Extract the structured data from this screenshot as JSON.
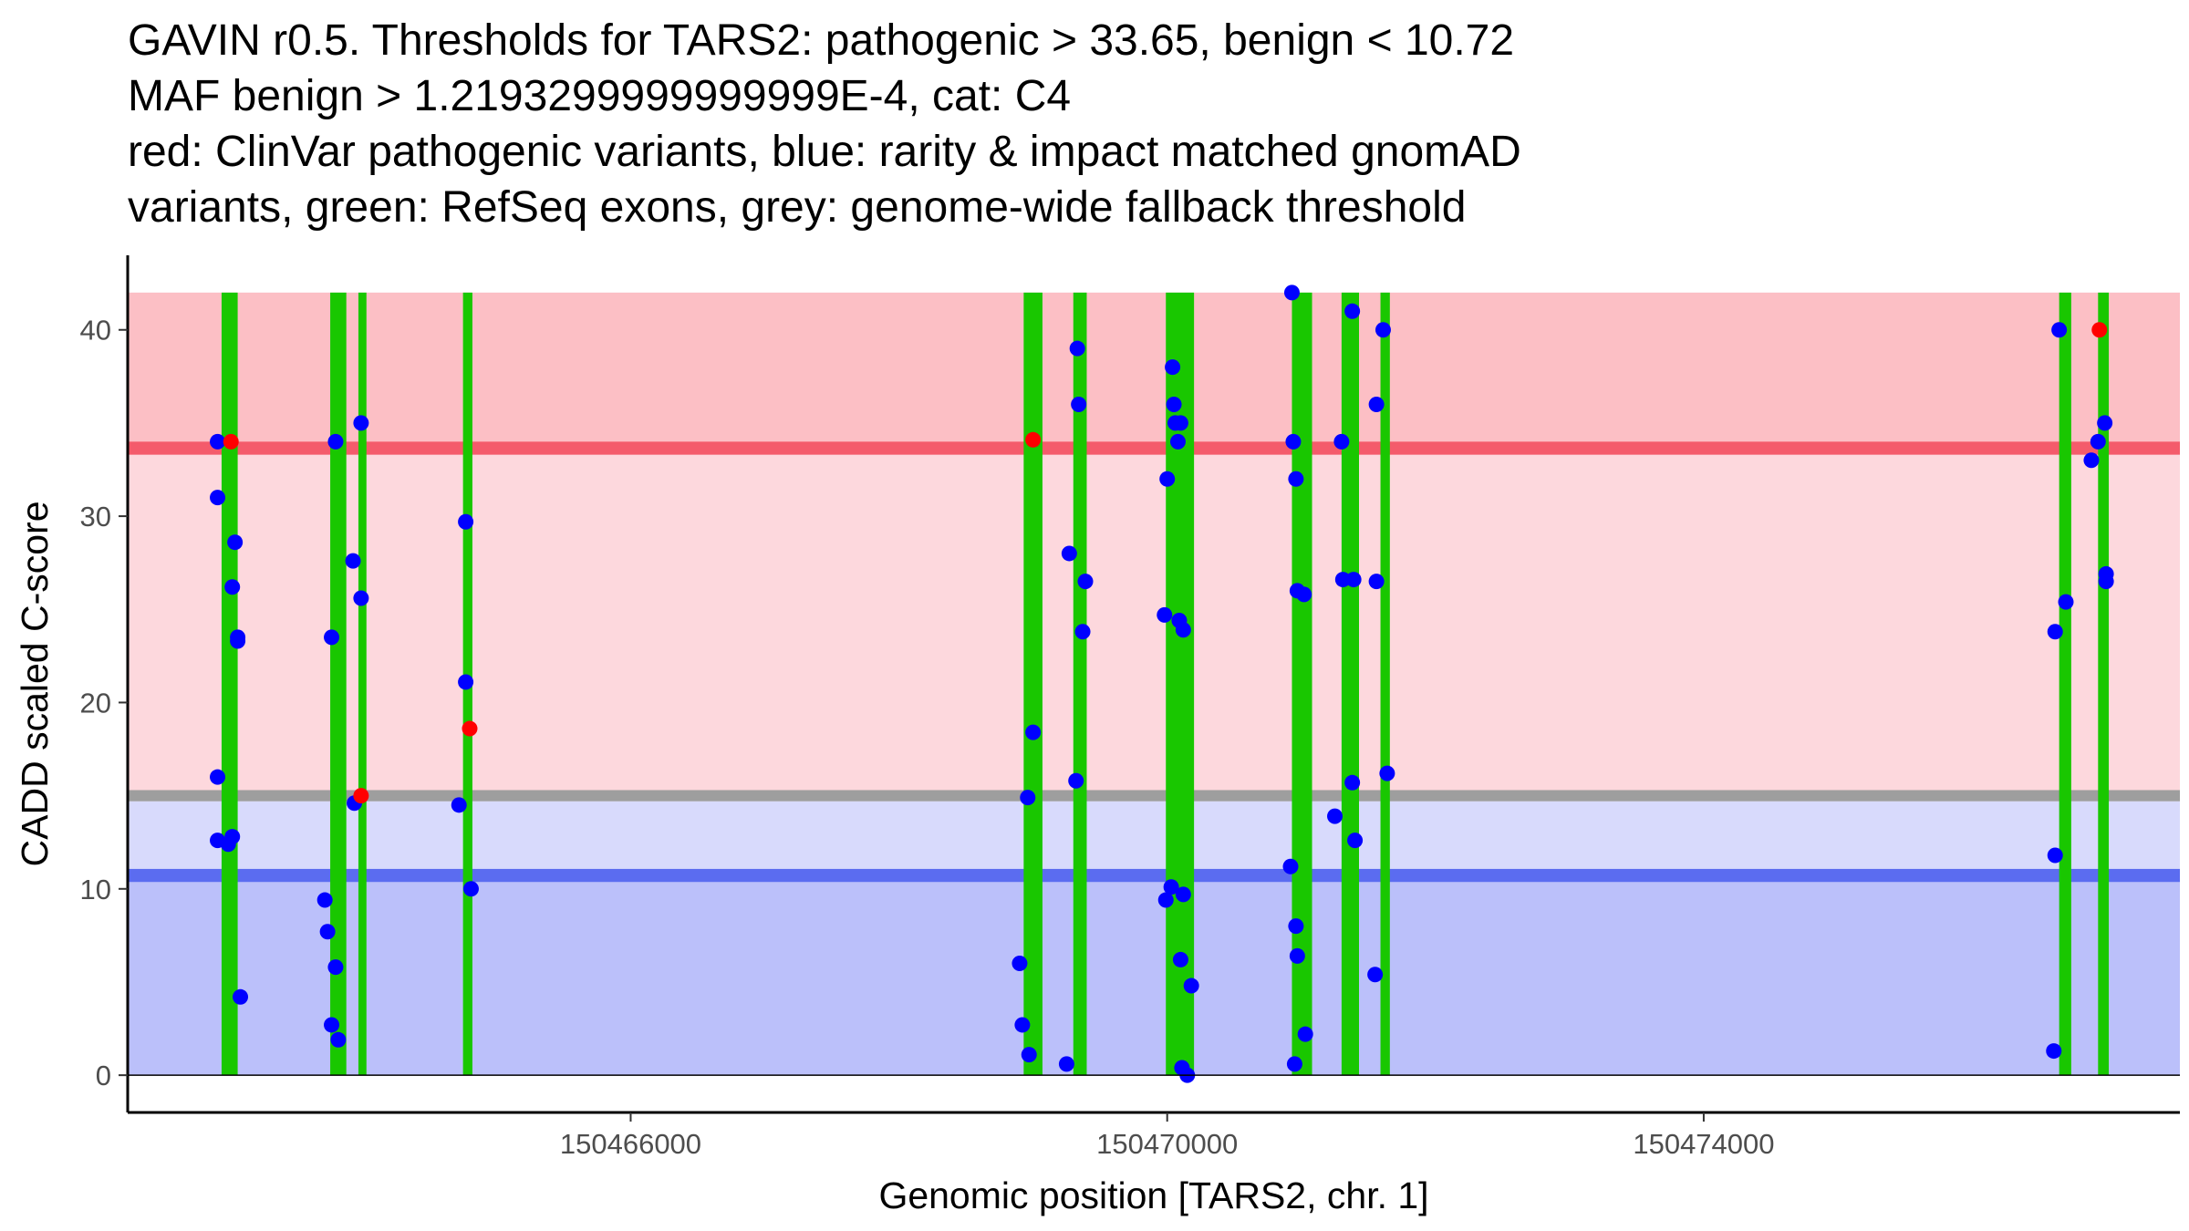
{
  "title_lines": [
    "GAVIN r0.5. Thresholds for TARS2: pathogenic > 33.65, benign < 10.72",
    "MAF benign > 1.2193299999999999E-4, cat: C4",
    "red: ClinVar pathogenic variants, blue: rarity & impact matched gnomAD",
    "variants, green: RefSeq exons, grey: genome-wide fallback threshold"
  ],
  "chart_data": {
    "type": "scatter",
    "xlabel": "Genomic position [TARS2, chr. 1]",
    "ylabel": "CADD scaled C-score",
    "xlim": [
      150462250,
      150477550
    ],
    "ylim": [
      -2,
      44
    ],
    "x_ticks": [
      150466000,
      150470000,
      150474000
    ],
    "x_tick_labels": [
      "150466000",
      "150470000",
      "150474000"
    ],
    "y_ticks": [
      0,
      10,
      20,
      30,
      40
    ],
    "y_tick_labels": [
      "0",
      "10",
      "20",
      "30",
      "40"
    ],
    "thresholds": {
      "pathogenic": 33.65,
      "benign": 10.72,
      "fallback_low": 14.7,
      "fallback_high": 15.3,
      "top": 42
    },
    "band_colors": {
      "pathogenic_top": "#fcbfc5",
      "pathogenic_mid": "#fdd8dd",
      "benign_mid": "#d8dafc",
      "benign_low": "#bbc0fa",
      "pathogenic_line": "#f45b6b",
      "benign_line": "#5b6cf0",
      "fallback_line": "#9e9e9e",
      "exon": "#19c700"
    },
    "exons": [
      [
        150462950,
        150463070
      ],
      [
        150463760,
        150463880
      ],
      [
        150463970,
        150464030
      ],
      [
        150464750,
        150464820
      ],
      [
        150468930,
        150469070
      ],
      [
        150469300,
        150469400
      ],
      [
        150469990,
        150470200
      ],
      [
        150470930,
        150471080
      ],
      [
        150471300,
        150471430
      ],
      [
        150471590,
        150471660
      ],
      [
        150476650,
        150476740
      ],
      [
        150476940,
        150477020
      ]
    ],
    "series": [
      {
        "name": "ClinVar pathogenic",
        "color": "#ff0000",
        "points": [
          [
            150463020,
            34
          ],
          [
            150463990,
            15
          ],
          [
            150464800,
            18.6
          ],
          [
            150469000,
            34.1
          ],
          [
            150476950,
            40
          ]
        ]
      },
      {
        "name": "gnomAD matched",
        "color": "#0000ff",
        "points": [
          [
            150462920,
            34
          ],
          [
            150462920,
            31
          ],
          [
            150462920,
            16
          ],
          [
            150462920,
            12.6
          ],
          [
            150463050,
            28.6
          ],
          [
            150463030,
            26.2
          ],
          [
            150463070,
            23.5
          ],
          [
            150463070,
            23.3
          ],
          [
            150463030,
            12.8
          ],
          [
            150463000,
            12.4
          ],
          [
            150463090,
            4.2
          ],
          [
            150463720,
            9.4
          ],
          [
            150463740,
            7.7
          ],
          [
            150463770,
            23.5
          ],
          [
            150463800,
            34
          ],
          [
            150463800,
            5.8
          ],
          [
            150463770,
            2.7
          ],
          [
            150463820,
            1.9
          ],
          [
            150463930,
            27.6
          ],
          [
            150463940,
            14.6
          ],
          [
            150463990,
            35
          ],
          [
            150463990,
            25.6
          ],
          [
            150464720,
            14.5
          ],
          [
            150464770,
            29.7
          ],
          [
            150464770,
            21.1
          ],
          [
            150464810,
            10
          ],
          [
            150468900,
            6
          ],
          [
            150468920,
            2.7
          ],
          [
            150468970,
            1.1
          ],
          [
            150468960,
            14.9
          ],
          [
            150469000,
            18.4
          ],
          [
            150469250,
            0.6
          ],
          [
            150469270,
            28
          ],
          [
            150469330,
            39
          ],
          [
            150469340,
            36
          ],
          [
            150469390,
            26.5
          ],
          [
            150469370,
            23.8
          ],
          [
            150469320,
            15.8
          ],
          [
            150469980,
            24.7
          ],
          [
            150469990,
            9.4
          ],
          [
            150470000,
            32
          ],
          [
            150470030,
            10.1
          ],
          [
            150470040,
            38
          ],
          [
            150470050,
            36
          ],
          [
            150470060,
            35
          ],
          [
            150470080,
            34
          ],
          [
            150470100,
            35
          ],
          [
            150470090,
            24.4
          ],
          [
            150470120,
            23.9
          ],
          [
            150470120,
            9.7
          ],
          [
            150470100,
            6.2
          ],
          [
            150470110,
            0.4
          ],
          [
            150470150,
            0
          ],
          [
            150470180,
            4.8
          ],
          [
            150470930,
            42
          ],
          [
            150470940,
            34
          ],
          [
            150470920,
            11.2
          ],
          [
            150470960,
            32
          ],
          [
            150470970,
            26
          ],
          [
            150470960,
            8
          ],
          [
            150470970,
            6.4
          ],
          [
            150470950,
            0.6
          ],
          [
            150471020,
            25.8
          ],
          [
            150471030,
            2.2
          ],
          [
            150471250,
            13.9
          ],
          [
            150471300,
            34
          ],
          [
            150471310,
            26.6
          ],
          [
            150471380,
            41
          ],
          [
            150471390,
            26.6
          ],
          [
            150471380,
            15.7
          ],
          [
            150471400,
            12.6
          ],
          [
            150471560,
            36
          ],
          [
            150471560,
            26.5
          ],
          [
            150471550,
            5.4
          ],
          [
            150471610,
            40
          ],
          [
            150471640,
            16.2
          ],
          [
            150476620,
            23.8
          ],
          [
            150476620,
            11.8
          ],
          [
            150476610,
            1.3
          ],
          [
            150476650,
            40
          ],
          [
            150476700,
            25.4
          ],
          [
            150476890,
            33
          ],
          [
            150476940,
            34
          ],
          [
            150476990,
            35
          ],
          [
            150477000,
            26.9
          ],
          [
            150477000,
            26.5
          ]
        ]
      }
    ]
  }
}
